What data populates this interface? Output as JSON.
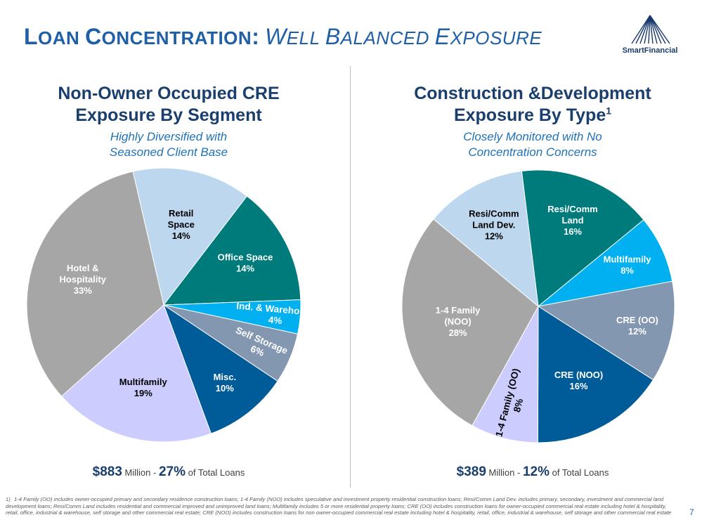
{
  "header": {
    "title_part1_big": "L",
    "title_part1_rest": "OAN",
    "title_part2_big": "C",
    "title_part2_rest": "ONCENTRATION",
    "title_colon": ":",
    "subtitle_part1_big": "W",
    "subtitle_part1_rest": "ELL",
    "subtitle_part2_big": "B",
    "subtitle_part2_rest": "ALANCED",
    "subtitle_part3_big": "E",
    "subtitle_part3_rest": "XPOSURE"
  },
  "logo": {
    "text": "SmartFinancial"
  },
  "colors": {
    "title": "#1f5fa8",
    "panel_title": "#1a3f6e",
    "panel_sub": "#1f72b8",
    "gray": "#a6a6a6",
    "light_blue": "#bdd7ee",
    "teal": "#007b7b",
    "bright_blue": "#00b0f0",
    "slate": "#8497b0",
    "navy": "#005b99",
    "lavender": "#ccccff"
  },
  "left_panel": {
    "title_line1": "Non-Owner Occupied CRE",
    "title_line2": "Exposure By Segment",
    "subtitle_line1": "Highly Diversified with",
    "subtitle_line2": "Seasoned Client Base",
    "total_amount": "$883",
    "total_unit": "Million",
    "total_sep": "-",
    "total_pct": "27%",
    "total_rest": "of Total Loans"
  },
  "right_panel": {
    "title_line1": "Construction &Development",
    "title_line2": "Exposure By Type",
    "title_sup": "1",
    "subtitle_line1": "Closely Monitored with No",
    "subtitle_line2": "Concentration Concerns",
    "total_amount": "$389",
    "total_unit": "Million",
    "total_sep": "-",
    "total_pct": "12%",
    "total_rest": "of Total Loans"
  },
  "chart_data": [
    {
      "type": "pie",
      "title": "Non-Owner Occupied CRE Exposure By Segment",
      "slices": [
        {
          "label": [
            "Retail",
            "Space"
          ],
          "pct_label": "14%",
          "value": 14,
          "color": "#bdd7ee",
          "text_color": "#000000"
        },
        {
          "label": [
            "Office Space"
          ],
          "pct_label": "14%",
          "value": 14,
          "color": "#007b7b",
          "text_color": "#ffffff"
        },
        {
          "label": [
            "Ind. & Warehouse"
          ],
          "pct_label": "4%",
          "value": 4,
          "color": "#00b0f0",
          "text_color": "#ffffff",
          "rotated": true
        },
        {
          "label": [
            "Self Storage"
          ],
          "pct_label": "6%",
          "value": 6,
          "color": "#8497b0",
          "text_color": "#ffffff",
          "rotated": true
        },
        {
          "label": [
            "Misc."
          ],
          "pct_label": "10%",
          "value": 10,
          "color": "#005b99",
          "text_color": "#ffffff"
        },
        {
          "label": [
            "Multifamily"
          ],
          "pct_label": "19%",
          "value": 19,
          "color": "#ccccff",
          "text_color": "#000000"
        },
        {
          "label": [
            "Hotel &",
            "Hospitality"
          ],
          "pct_label": "33%",
          "value": 33,
          "color": "#a6a6a6",
          "text_color": "#ffffff"
        }
      ]
    },
    {
      "type": "pie",
      "title": "Construction &Development Exposure By Type",
      "slices": [
        {
          "label": [
            "Resi/Comm",
            "Land"
          ],
          "pct_label": "16%",
          "value": 16,
          "color": "#007b7b",
          "text_color": "#ffffff"
        },
        {
          "label": [
            "Multifamily"
          ],
          "pct_label": "8%",
          "value": 8,
          "color": "#00b0f0",
          "text_color": "#ffffff"
        },
        {
          "label": [
            "CRE (OO)"
          ],
          "pct_label": "12%",
          "value": 12,
          "color": "#8497b0",
          "text_color": "#ffffff"
        },
        {
          "label": [
            "CRE (NOO)"
          ],
          "pct_label": "16%",
          "value": 16,
          "color": "#005b99",
          "text_color": "#ffffff"
        },
        {
          "label": [
            "1-4 Family (OO)"
          ],
          "pct_label": "8%",
          "value": 8,
          "color": "#ccccff",
          "text_color": "#000000",
          "rotated": true
        },
        {
          "label": [
            "1-4 Family",
            "(NOO)"
          ],
          "pct_label": "28%",
          "value": 28,
          "color": "#a6a6a6",
          "text_color": "#ffffff"
        },
        {
          "label": [
            "Resi/Comm",
            "Land Dev."
          ],
          "pct_label": "12%",
          "value": 12,
          "color": "#bdd7ee",
          "text_color": "#000000"
        }
      ]
    }
  ],
  "footnote": {
    "mark": "1)",
    "text": "1-4 Family (OO) includes owner-occupied primary and secondary residence construction loans; 1-4 Family (NOO) includes speculative and investment property residential construction loans; Resi/Comm Land Dev. includes primary, secondary, investment and commercial land development loans; Resi/Comm Land includes residential and commercial improved and unimproved land loans; Multifamily includes 5 or more residential property loans; CRE (OO) includes construction loans for owner-occupied commercial real estate including hotel & hospitality, retail, office, industrial & warehouse, self storage and other commercial real estate; CRE (NOO) includes construction loans for non owner-occupied commercial real estate including hotel & hospitality, retail, office, industrial & warehouse, self storage and other commercial real estate"
  },
  "page_number": "7"
}
